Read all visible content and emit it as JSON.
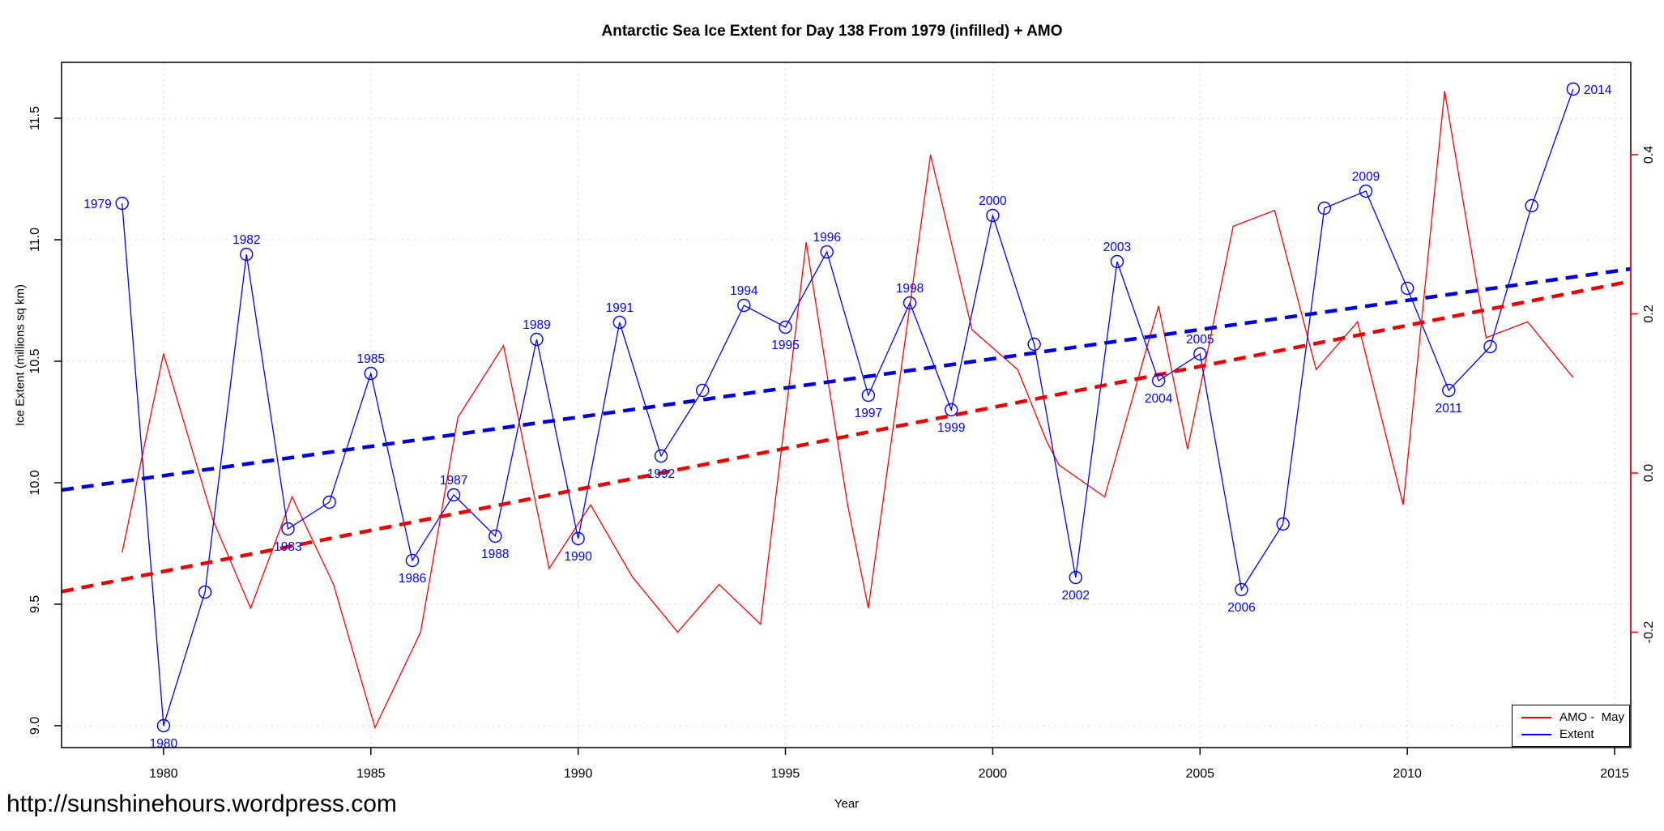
{
  "page": {
    "url_text": "http://sunshinehours.wordpress.com"
  },
  "chart_data": {
    "type": "line",
    "title": "Antarctic Sea Ice Extent for Day 138 From 1979 (infilled)  + AMO",
    "xlabel": "Year",
    "ylabel_left": "Ice Extent (millions sq km)",
    "grid": true,
    "legend_position": "bottom-right",
    "colors": {
      "extent": "#0000ff",
      "amo": "#ff0000",
      "extent_trend": "#0000dd",
      "amo_trend": "#ee0000",
      "gridline": "#d4d4d4",
      "axis": "#000000",
      "right_axis": "#ff0000",
      "point_label": "#0000ff"
    },
    "x_axis": {
      "domain": [
        1977.54,
        2015.39
      ],
      "tick_values": [
        1980,
        1985,
        1990,
        1995,
        2000,
        2005,
        2010,
        2015
      ],
      "tick_labels": [
        "1980",
        "1985",
        "1990",
        "1995",
        "2000",
        "2005",
        "2010",
        "2015"
      ]
    },
    "y_axis_left": {
      "domain": [
        8.91,
        11.73
      ],
      "tick_values": [
        9.0,
        9.5,
        10.0,
        10.5,
        11.0,
        11.5
      ],
      "tick_labels": [
        "9.0",
        "9.5",
        "10.0",
        "10.5",
        "11.0",
        "11.5"
      ]
    },
    "y_axis_right": {
      "domain": [
        -0.345,
        0.516
      ],
      "tick_values": [
        -0.2,
        0.0,
        0.2,
        0.4
      ],
      "tick_labels": [
        "-0.2",
        "0.0",
        "0.2",
        "0.4"
      ]
    },
    "series": [
      {
        "name": "Extent",
        "axis": "left",
        "marker": "open-circle",
        "points": [
          {
            "year": 1979,
            "value": 11.15,
            "label": "1979",
            "label_pos": "left"
          },
          {
            "year": 1980,
            "value": 9.0,
            "label": "1980",
            "label_pos": "below"
          },
          {
            "year": 1981,
            "value": 9.55,
            "label": null
          },
          {
            "year": 1982,
            "value": 10.94,
            "label": "1982",
            "label_pos": "above"
          },
          {
            "year": 1983,
            "value": 9.81,
            "label": "1983",
            "label_pos": "below"
          },
          {
            "year": 1984,
            "value": 9.92,
            "label": null
          },
          {
            "year": 1985,
            "value": 10.45,
            "label": "1985",
            "label_pos": "above"
          },
          {
            "year": 1986,
            "value": 9.68,
            "label": "1986",
            "label_pos": "below"
          },
          {
            "year": 1987,
            "value": 9.95,
            "label": "1987",
            "label_pos": "above"
          },
          {
            "year": 1988,
            "value": 9.78,
            "label": "1988",
            "label_pos": "below"
          },
          {
            "year": 1989,
            "value": 10.59,
            "label": "1989",
            "label_pos": "above"
          },
          {
            "year": 1990,
            "value": 9.77,
            "label": "1990",
            "label_pos": "below"
          },
          {
            "year": 1991,
            "value": 10.66,
            "label": "1991",
            "label_pos": "above"
          },
          {
            "year": 1992,
            "value": 10.11,
            "label": "1992",
            "label_pos": "below"
          },
          {
            "year": 1993,
            "value": 10.38,
            "label": null
          },
          {
            "year": 1994,
            "value": 10.73,
            "label": "1994",
            "label_pos": "above"
          },
          {
            "year": 1995,
            "value": 10.64,
            "label": "1995",
            "label_pos": "below"
          },
          {
            "year": 1996,
            "value": 10.95,
            "label": "1996",
            "label_pos": "above"
          },
          {
            "year": 1997,
            "value": 10.36,
            "label": "1997",
            "label_pos": "below"
          },
          {
            "year": 1998,
            "value": 10.74,
            "label": "1998",
            "label_pos": "above"
          },
          {
            "year": 1999,
            "value": 10.3,
            "label": "1999",
            "label_pos": "below"
          },
          {
            "year": 2000,
            "value": 11.1,
            "label": "2000",
            "label_pos": "above"
          },
          {
            "year": 2001,
            "value": 10.57,
            "label": null
          },
          {
            "year": 2002,
            "value": 9.61,
            "label": "2002",
            "label_pos": "below"
          },
          {
            "year": 2003,
            "value": 10.91,
            "label": "2003",
            "label_pos": "above"
          },
          {
            "year": 2004,
            "value": 10.42,
            "label": "2004",
            "label_pos": "below"
          },
          {
            "year": 2005,
            "value": 10.53,
            "label": "2005",
            "label_pos": "above"
          },
          {
            "year": 2006,
            "value": 9.56,
            "label": "2006",
            "label_pos": "below"
          },
          {
            "year": 2007,
            "value": 9.83,
            "label": null
          },
          {
            "year": 2008,
            "value": 11.13,
            "label": null
          },
          {
            "year": 2009,
            "value": 11.2,
            "label": "2009",
            "label_pos": "above"
          },
          {
            "year": 2010,
            "value": 10.8,
            "label": null
          },
          {
            "year": 2011,
            "value": 10.38,
            "label": "2011",
            "label_pos": "below"
          },
          {
            "year": 2012,
            "value": 10.56,
            "label": null
          },
          {
            "year": 2013,
            "value": 11.14,
            "label": null
          },
          {
            "year": 2014,
            "value": 11.62,
            "label": "2014",
            "label_pos": "right"
          }
        ]
      },
      {
        "name": "AMO -  May",
        "axis": "right",
        "marker": "none",
        "points": [
          {
            "x": 1979.0,
            "value": -0.1
          },
          {
            "x": 1980.0,
            "value": 0.15
          },
          {
            "x": 1981.2,
            "value": -0.06
          },
          {
            "x": 1982.1,
            "value": -0.17
          },
          {
            "x": 1983.1,
            "value": -0.03
          },
          {
            "x": 1984.1,
            "value": -0.14
          },
          {
            "x": 1985.1,
            "value": -0.32
          },
          {
            "x": 1986.2,
            "value": -0.2
          },
          {
            "x": 1987.1,
            "value": 0.07
          },
          {
            "x": 1988.2,
            "value": 0.16
          },
          {
            "x": 1989.3,
            "value": -0.12
          },
          {
            "x": 1990.3,
            "value": -0.04
          },
          {
            "x": 1991.3,
            "value": -0.13
          },
          {
            "x": 1992.4,
            "value": -0.2
          },
          {
            "x": 1993.4,
            "value": -0.14
          },
          {
            "x": 1994.4,
            "value": -0.19
          },
          {
            "x": 1995.5,
            "value": 0.29
          },
          {
            "x": 1996.5,
            "value": -0.04
          },
          {
            "x": 1997.0,
            "value": -0.17
          },
          {
            "x": 1998.5,
            "value": 0.4
          },
          {
            "x": 1999.5,
            "value": 0.18
          },
          {
            "x": 2000.6,
            "value": 0.13
          },
          {
            "x": 2001.3,
            "value": 0.04
          },
          {
            "x": 2001.6,
            "value": 0.01
          },
          {
            "x": 2002.7,
            "value": -0.03
          },
          {
            "x": 2004.0,
            "value": 0.21
          },
          {
            "x": 2004.7,
            "value": 0.03
          },
          {
            "x": 2005.8,
            "value": 0.31
          },
          {
            "x": 2006.8,
            "value": 0.33
          },
          {
            "x": 2007.8,
            "value": 0.13
          },
          {
            "x": 2008.8,
            "value": 0.19
          },
          {
            "x": 2009.9,
            "value": -0.04
          },
          {
            "x": 2010.9,
            "value": 0.48
          },
          {
            "x": 2011.9,
            "value": 0.17
          },
          {
            "x": 2012.9,
            "value": 0.19
          },
          {
            "x": 2014.0,
            "value": 0.12
          }
        ]
      }
    ],
    "trend_lines": [
      {
        "name": "Extent trend",
        "axis": "left",
        "x": [
          1977.54,
          2015.39
        ],
        "values": [
          9.97,
          10.88
        ]
      },
      {
        "name": "AMO trend",
        "axis": "right",
        "x": [
          1977.54,
          2015.39
        ],
        "values": [
          -0.149,
          0.241
        ]
      }
    ],
    "legend": {
      "items": [
        {
          "label": "AMO -  May",
          "series": "amo"
        },
        {
          "label": "Extent",
          "series": "extent"
        }
      ]
    }
  }
}
